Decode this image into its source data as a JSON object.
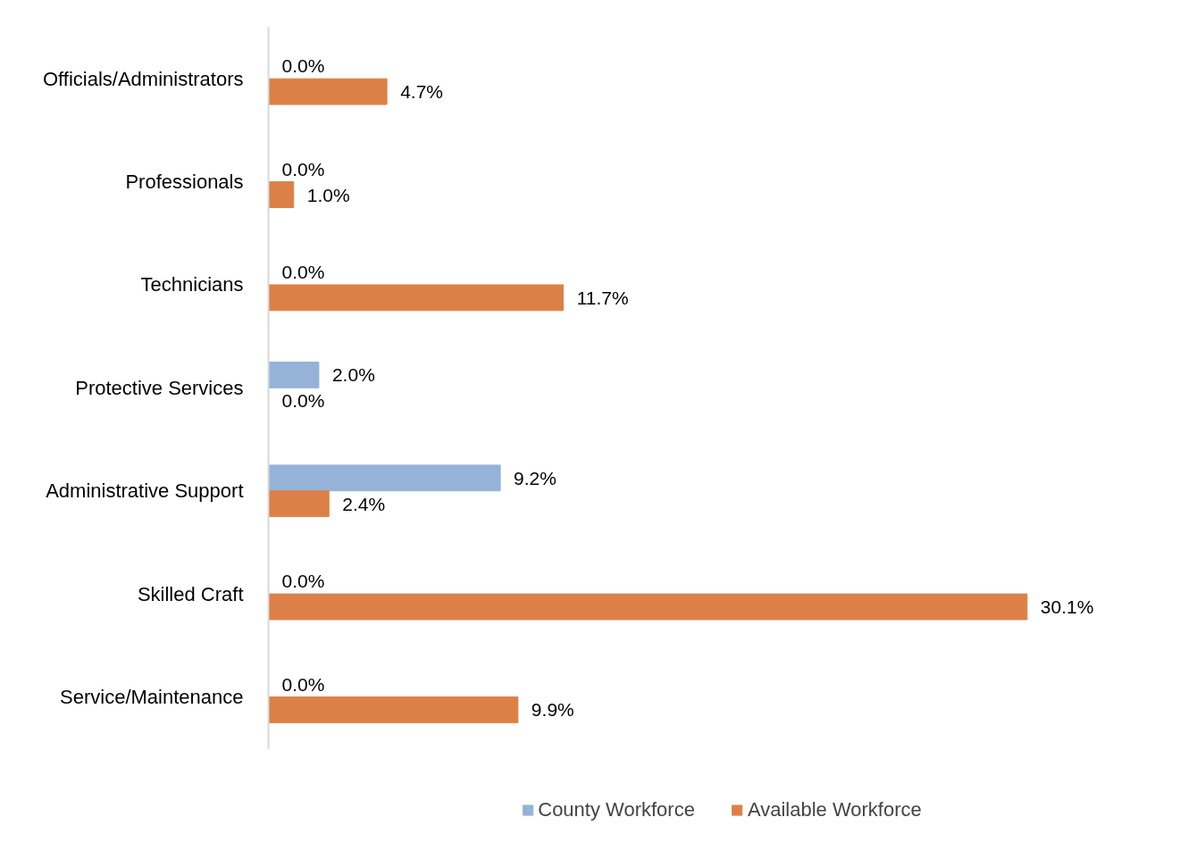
{
  "chart_data": {
    "type": "bar",
    "orientation": "horizontal",
    "legend": "bottom",
    "grid": false,
    "categories": [
      "Officials/Administrators",
      "Professionals",
      "Technicians",
      "Protective Services",
      "Administrative Support",
      "Skilled Craft",
      "Service/Maintenance"
    ],
    "series": [
      {
        "name": "County Workforce",
        "color": "#95b3d7",
        "values": [
          0.0,
          0.0,
          0.0,
          2.0,
          9.2,
          0.0,
          0.0
        ],
        "value_labels": [
          "0.0%",
          "0.0%",
          "0.0%",
          "2.0%",
          "9.2%",
          "0.0%",
          "0.0%"
        ]
      },
      {
        "name": "Available Workforce",
        "color": "#dd8047",
        "values": [
          4.7,
          1.0,
          11.7,
          0.0,
          2.4,
          30.1,
          9.9
        ],
        "value_labels": [
          "4.7%",
          "1.0%",
          "11.7%",
          "0.0%",
          "2.4%",
          "30.1%",
          "9.9%"
        ]
      }
    ]
  }
}
